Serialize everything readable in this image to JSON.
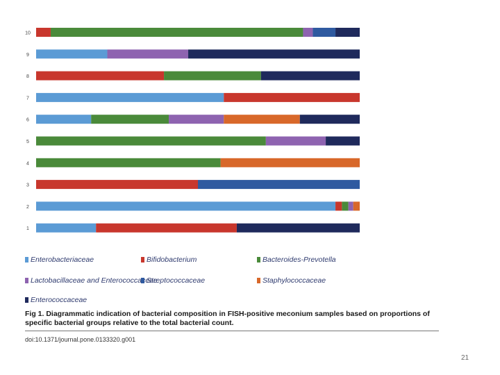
{
  "colors": {
    "Enterobacteriaceae": "#5b9bd5",
    "Bifidobacterium": "#c8372d",
    "Bacteroides-Prevotella": "#4a8a3a",
    "Lactobacillaceae and Enterococcaceae": "#8e63b0",
    "Streptococcaceae": "#2f5aa0",
    "Staphylococcaceae": "#d8682a",
    "Enterococcaceae": "#1f2a5c"
  },
  "chart_data": {
    "type": "bar",
    "orientation": "horizontal",
    "stacked": true,
    "xlim": [
      0,
      100
    ],
    "categories": [
      "10",
      "9",
      "8",
      "7",
      "6",
      "5",
      "4",
      "3",
      "2",
      "1"
    ],
    "series": [
      {
        "name": "Enterobacteriaceae",
        "values": [
          0,
          22,
          0,
          58,
          17,
          0,
          0,
          0,
          92.5,
          18.5
        ]
      },
      {
        "name": "Bifidobacterium",
        "values": [
          4.5,
          0,
          39.5,
          42,
          0,
          0,
          0,
          50,
          2,
          43.5
        ]
      },
      {
        "name": "Bacteroides-Prevotella",
        "values": [
          78,
          0,
          30,
          0,
          24,
          71,
          57,
          0,
          2,
          0
        ]
      },
      {
        "name": "Lactobacillaceae and Enterococcaceae",
        "values": [
          3,
          25,
          0,
          0,
          17,
          18.5,
          0,
          0,
          1.5,
          0
        ]
      },
      {
        "name": "Streptococcaceae",
        "values": [
          7,
          0,
          0,
          0,
          0,
          0,
          0,
          50,
          0,
          0
        ]
      },
      {
        "name": "Staphylococcaceae",
        "values": [
          0,
          0,
          0,
          0,
          23.5,
          0,
          43,
          0,
          2,
          0
        ]
      },
      {
        "name": "Enterococcaceae",
        "values": [
          7.5,
          53,
          30.5,
          0,
          18.5,
          10.5,
          0,
          0,
          0,
          38
        ]
      }
    ]
  },
  "legend": [
    {
      "label": "Enterobacteriaceae",
      "series": "Enterobacteriaceae"
    },
    {
      "label": "Bifidobacterium",
      "series": "Bifidobacterium"
    },
    {
      "label": "Bacteroides-Prevotella",
      "series": "Bacteroides-Prevotella"
    },
    {
      "label": "Lactobacillaceae and Enterococcaceae",
      "series": "Lactobacillaceae and Enterococcaceae"
    },
    {
      "label": "Streptococcaceae",
      "series": "Streptococcaceae"
    },
    {
      "label": "Staphylococcaceae",
      "series": "Staphylococcaceae"
    },
    {
      "label": "Enterococcaceae",
      "series": "Enterococcaceae"
    }
  ],
  "caption": "Fig 1. Diagrammatic indication of bacterial composition in FISH-positive meconium samples based on proportions of specific bacterial groups relative to the total bacterial count.",
  "doi": "doi:10.1371/journal.pone.0133320.g001",
  "page_number": "21"
}
